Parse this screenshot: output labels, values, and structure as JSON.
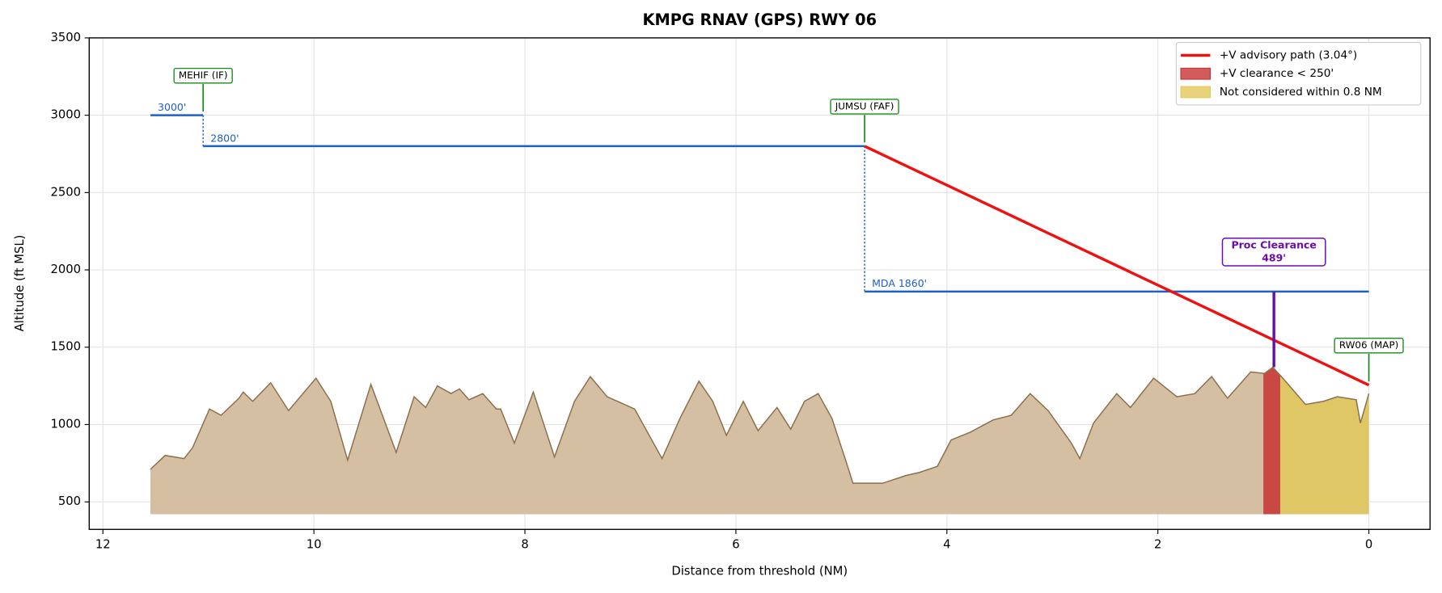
{
  "chart_data": {
    "type": "approach-profile",
    "title": "KMPG  RNAV (GPS) RWY 06",
    "xlabel": "Distance from threshold (NM)",
    "ylabel": "Altitude (ft MSL)",
    "xlim": [
      12.13,
      -0.58
    ],
    "ylim": [
      322,
      3500
    ],
    "xticks": [
      12,
      10,
      8,
      6,
      4,
      2,
      0
    ],
    "yticks": [
      500,
      1000,
      1500,
      2000,
      2500,
      3000,
      3500
    ],
    "grid": true,
    "legend": "upper right",
    "terrain": {
      "color": "#d4bfa2",
      "edge_color": "#8b6f4e",
      "base": 420,
      "x": [
        11.55,
        11.41,
        11.23,
        11.15,
        10.99,
        10.88,
        10.71,
        10.67,
        10.58,
        10.41,
        10.24,
        9.98,
        9.84,
        9.68,
        9.46,
        9.22,
        9.05,
        8.94,
        8.83,
        8.7,
        8.62,
        8.53,
        8.4,
        8.27,
        8.23,
        8.1,
        7.92,
        7.72,
        7.53,
        7.38,
        7.22,
        6.96,
        6.7,
        6.53,
        6.35,
        6.22,
        6.09,
        5.93,
        5.79,
        5.61,
        5.48,
        5.35,
        5.22,
        5.09,
        4.96,
        4.89,
        4.61,
        4.39,
        4.26,
        4.09,
        3.96,
        3.78,
        3.56,
        3.39,
        3.21,
        3.04,
        2.82,
        2.74,
        2.61,
        2.39,
        2.26,
        2.04,
        1.82,
        1.65,
        1.49,
        1.34,
        1.12,
        0.99,
        0.91,
        0.79,
        0.6,
        0.43,
        0.3,
        0.12,
        0.08,
        0
      ],
      "values": [
        710,
        800,
        780,
        850,
        1100,
        1060,
        1170,
        1210,
        1150,
        1270,
        1090,
        1300,
        1150,
        770,
        1260,
        820,
        1180,
        1110,
        1250,
        1200,
        1230,
        1160,
        1200,
        1100,
        1100,
        880,
        1210,
        790,
        1150,
        1310,
        1180,
        1100,
        780,
        1040,
        1280,
        1150,
        930,
        1150,
        960,
        1110,
        970,
        1150,
        1200,
        1040,
        770,
        620,
        620,
        670,
        690,
        730,
        900,
        950,
        1030,
        1060,
        1200,
        1090,
        880,
        780,
        1010,
        1200,
        1110,
        1300,
        1180,
        1200,
        1310,
        1170,
        1340,
        1330,
        1370,
        1280,
        1130,
        1150,
        1180,
        1160,
        1010,
        1200
      ]
    },
    "regions": [
      {
        "name": "+V clearance < 250'",
        "color": "#c83232",
        "x0": 1.0,
        "x1": 0.84
      },
      {
        "name": "Not considered within 0.8 NM",
        "color": "#e2c85a",
        "x0": 0.84,
        "x1": 0
      }
    ],
    "segments": [
      {
        "label": "3000'",
        "color": "#1f5fc8",
        "x": [
          11.55,
          11.05
        ],
        "values": [
          3000,
          3000
        ]
      },
      {
        "label": "2800'",
        "color": "#1f5fc8",
        "x": [
          11.05,
          4.78
        ],
        "values": [
          2800,
          2800
        ]
      },
      {
        "label": "MDA 1860'",
        "color": "#1f5fc8",
        "x": [
          4.78,
          0
        ],
        "values": [
          1860,
          1860
        ]
      }
    ],
    "path": {
      "name": "+V advisory path (3.04°)",
      "color": "#ee1111",
      "x": [
        4.78,
        0
      ],
      "values": [
        2800,
        1255
      ]
    },
    "fixes": [
      {
        "name": "MEHIF (IF)",
        "x": 11.05,
        "altitude": 3000
      },
      {
        "name": "JUMSU (FAF)",
        "x": 4.78,
        "altitude": 2800
      },
      {
        "name": "RW06 (MAP)",
        "x": 0,
        "altitude": 1255
      }
    ],
    "clearance": {
      "title": "Proc Clearance",
      "value": 489,
      "value_label": "489'",
      "x": 0.9,
      "top": 1860,
      "color": "#6a0dad"
    }
  }
}
